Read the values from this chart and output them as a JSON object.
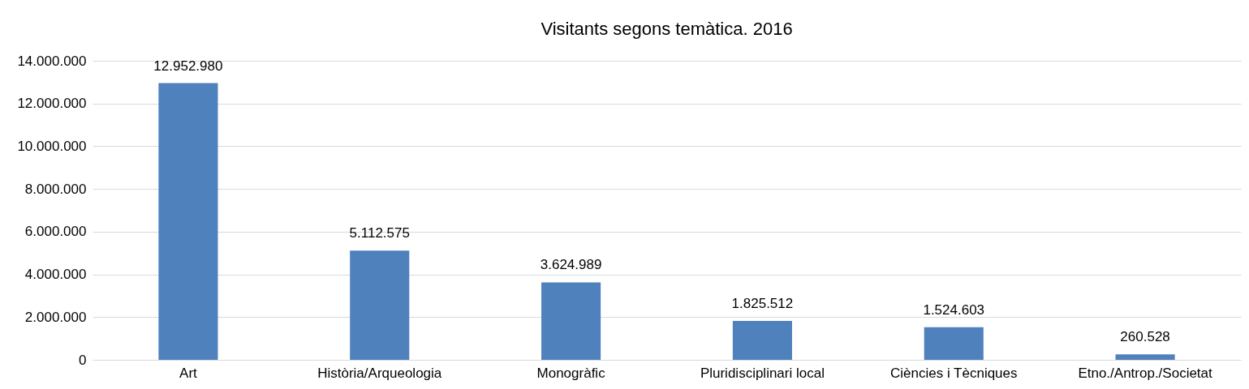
{
  "chart_data": {
    "type": "bar",
    "title": "Visitants segons temàtica. 2016",
    "categories": [
      "Art",
      "Història/Arqueologia",
      "Monogràfic",
      "Pluridisciplinari local",
      "Ciències i Tècniques",
      "Etno./Antrop./Societat"
    ],
    "values": [
      12952980,
      5112575,
      3624989,
      1825512,
      1524603,
      260528
    ],
    "value_labels": [
      "12.952.980",
      "5.112.575",
      "3.624.989",
      "1.825.512",
      "1.524.603",
      "260.528"
    ],
    "color": "#4f81bd",
    "ylim": [
      0,
      14000000
    ],
    "yticks": [
      {
        "value": 0,
        "label": "0"
      },
      {
        "value": 2000000,
        "label": "2.000.000"
      },
      {
        "value": 4000000,
        "label": "4.000.000"
      },
      {
        "value": 6000000,
        "label": "6.000.000"
      },
      {
        "value": 8000000,
        "label": "8.000.000"
      },
      {
        "value": 10000000,
        "label": "10.000.000"
      },
      {
        "value": 12000000,
        "label": "12.000.000"
      },
      {
        "value": 14000000,
        "label": "14.000.000"
      }
    ],
    "grid": "y"
  }
}
